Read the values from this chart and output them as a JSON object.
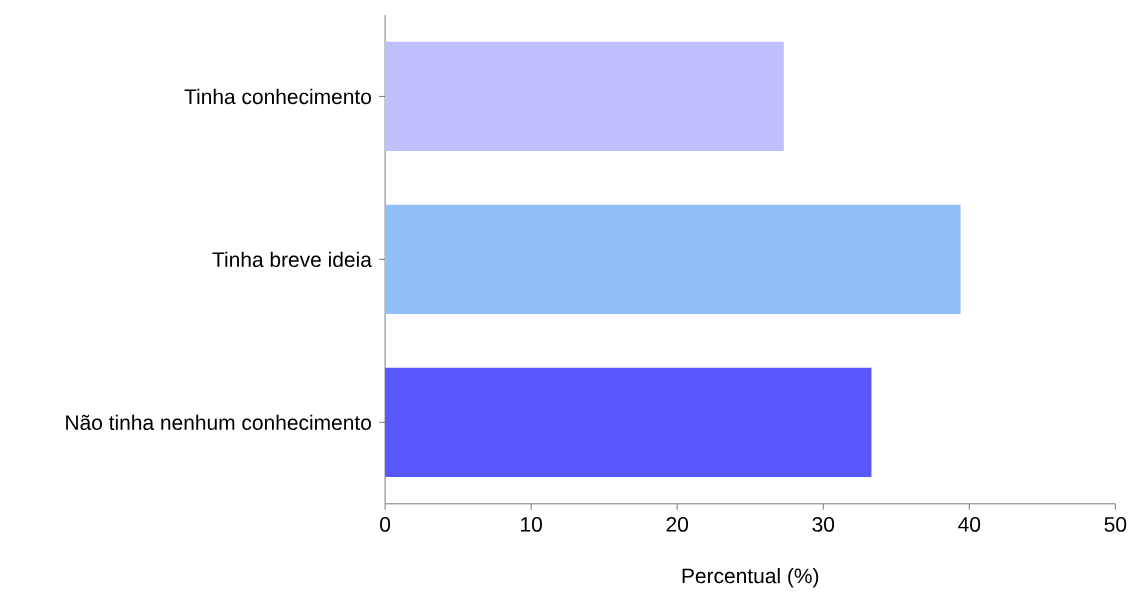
{
  "chart_data": {
    "type": "bar",
    "orientation": "horizontal",
    "xlabel": "Percentual (%)",
    "categories": [
      "Tinha conhecimento",
      "Tinha breve ideia",
      "Não tinha nenhum conhecimento"
    ],
    "values": [
      27.3,
      39.4,
      33.3
    ],
    "colors": [
      "#c0c0ff",
      "#92bff8",
      "#5858fc"
    ],
    "xlim": [
      0,
      50
    ],
    "xticks": [
      0,
      10,
      20,
      30,
      40,
      50
    ],
    "grid": false
  }
}
